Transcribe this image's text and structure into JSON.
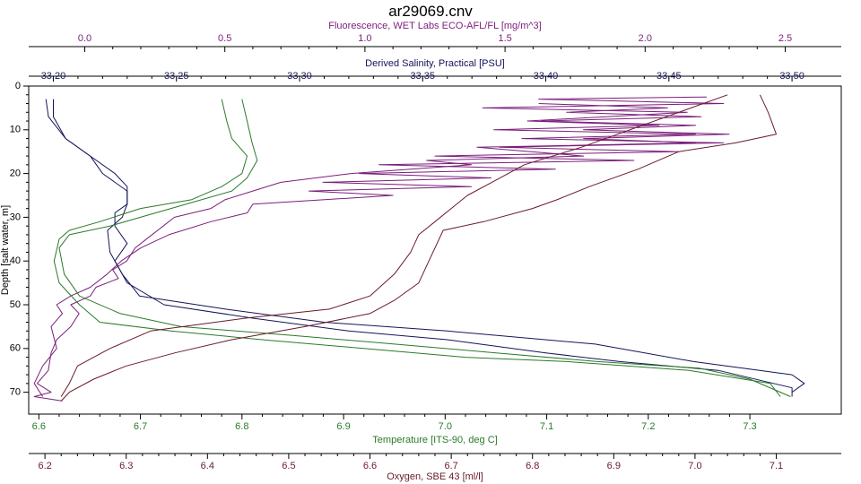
{
  "chart_data": {
    "type": "line",
    "title": "ar29069.cnv",
    "colors": {
      "fluorescence": "#7b1f7b",
      "salinity": "#14145a",
      "temperature": "#2a7a2a",
      "oxygen": "#6a1a2a",
      "depth_axis": "#000000"
    },
    "grid": false,
    "axes": {
      "fluorescence": {
        "label": "Fluorescence, WET Labs ECO-AFL/FL [mg/m^3]",
        "position": "top-outer",
        "range": [
          -0.2,
          2.7
        ],
        "ticks": [
          "0.0",
          "0.5",
          "1.0",
          "1.5",
          "2.0",
          "2.5"
        ]
      },
      "salinity": {
        "label": "Derived Salinity, Practical [PSU]",
        "position": "top-inner",
        "range": [
          33.19,
          33.52
        ],
        "ticks": [
          "33.20",
          "33.25",
          "33.30",
          "33.35",
          "33.40",
          "33.45",
          "33.50"
        ]
      },
      "temperature": {
        "label": "Temperature [ITS-90, deg C]",
        "position": "bottom-inner",
        "range": [
          6.59,
          7.39
        ],
        "ticks": [
          "6.6",
          "6.7",
          "6.8",
          "6.9",
          "7.0",
          "7.1",
          "7.2",
          "7.3"
        ]
      },
      "oxygen": {
        "label": "Oxygen, SBE 43 [ml/l]",
        "position": "bottom-outer",
        "range": [
          6.18,
          7.18
        ],
        "ticks": [
          "6.2",
          "6.3",
          "6.4",
          "6.5",
          "6.6",
          "6.7",
          "6.8",
          "6.9",
          "7.0",
          "7.1"
        ]
      },
      "depth": {
        "label": "Depth [salt water, m]",
        "position": "left",
        "range": [
          0,
          75
        ],
        "ticks": [
          "0",
          "10",
          "20",
          "30",
          "40",
          "50",
          "60",
          "70"
        ],
        "inverted": true
      }
    },
    "series": [
      {
        "name": "Fluorescence, WET Labs ECO-AFL/FL [mg/m^3]",
        "axis": "fluorescence",
        "color_key": "fluorescence",
        "points": [
          [
            2.22,
            2.5
          ],
          [
            1.62,
            3
          ],
          [
            2.28,
            4
          ],
          [
            1.42,
            5
          ],
          [
            2.15,
            6
          ],
          [
            1.58,
            8
          ],
          [
            2.05,
            9
          ],
          [
            1.46,
            10
          ],
          [
            2.18,
            11
          ],
          [
            1.56,
            12
          ],
          [
            2.28,
            13
          ],
          [
            1.48,
            14
          ],
          [
            2.12,
            15
          ],
          [
            1.25,
            16
          ],
          [
            1.96,
            17
          ],
          [
            1.05,
            18
          ],
          [
            1.68,
            19
          ],
          [
            0.98,
            20
          ],
          [
            1.45,
            21
          ],
          [
            0.85,
            22
          ],
          [
            1.38,
            23
          ],
          [
            0.8,
            24
          ],
          [
            1.1,
            25
          ],
          [
            0.6,
            27
          ],
          [
            0.58,
            29
          ],
          [
            0.45,
            31
          ],
          [
            0.3,
            34
          ],
          [
            0.2,
            37
          ],
          [
            0.13,
            40
          ],
          [
            0.08,
            43
          ],
          [
            0.02,
            46
          ],
          [
            -0.05,
            48
          ],
          [
            -0.1,
            50
          ],
          [
            -0.08,
            52
          ],
          [
            -0.12,
            55
          ],
          [
            -0.1,
            60
          ],
          [
            -0.15,
            64
          ],
          [
            -0.18,
            68
          ],
          [
            -0.15,
            71
          ]
        ]
      },
      {
        "name": "Fluorescence, WET Labs ECO-AFL/FL [mg/m^3]",
        "axis": "fluorescence",
        "color_key": "fluorescence",
        "points": [
          [
            1.62,
            4
          ],
          [
            2.08,
            5
          ],
          [
            1.72,
            6
          ],
          [
            2.2,
            7
          ],
          [
            1.63,
            8
          ],
          [
            2.18,
            9
          ],
          [
            1.78,
            10
          ],
          [
            2.3,
            11
          ],
          [
            1.78,
            12
          ],
          [
            2.18,
            13
          ],
          [
            1.4,
            14
          ],
          [
            1.78,
            16
          ],
          [
            1.22,
            17
          ],
          [
            1.38,
            18
          ],
          [
            0.95,
            20
          ],
          [
            0.7,
            22
          ],
          [
            0.6,
            24
          ],
          [
            0.5,
            26
          ],
          [
            0.45,
            28
          ],
          [
            0.32,
            30
          ],
          [
            0.28,
            32
          ],
          [
            0.22,
            35
          ],
          [
            0.18,
            37
          ],
          [
            0.15,
            40
          ],
          [
            0.1,
            42
          ],
          [
            0.12,
            44
          ],
          [
            0.04,
            46
          ],
          [
            0.02,
            48
          ],
          [
            -0.05,
            50
          ],
          [
            -0.02,
            52
          ],
          [
            -0.05,
            55
          ],
          [
            -0.1,
            58
          ],
          [
            -0.12,
            61
          ],
          [
            -0.13,
            65
          ],
          [
            -0.17,
            68
          ],
          [
            -0.12,
            70
          ],
          [
            -0.18,
            71
          ],
          [
            -0.08,
            72
          ]
        ]
      },
      {
        "name": "Derived Salinity, Practical [PSU]",
        "axis": "salinity",
        "color_key": "salinity",
        "points": [
          [
            33.2,
            3
          ],
          [
            33.2,
            7
          ],
          [
            33.205,
            12
          ],
          [
            33.215,
            16
          ],
          [
            33.22,
            20
          ],
          [
            33.23,
            24
          ],
          [
            33.23,
            27
          ],
          [
            33.225,
            29
          ],
          [
            33.225,
            32
          ],
          [
            33.23,
            36
          ],
          [
            33.225,
            40
          ],
          [
            33.23,
            45
          ],
          [
            33.245,
            50
          ],
          [
            33.28,
            53
          ],
          [
            33.32,
            56
          ],
          [
            33.36,
            58
          ],
          [
            33.4,
            61
          ],
          [
            33.43,
            63
          ],
          [
            33.47,
            65
          ],
          [
            33.5,
            69
          ],
          [
            33.5,
            71
          ]
        ]
      },
      {
        "name": "Derived Salinity, Practical [PSU]",
        "axis": "salinity",
        "color_key": "salinity",
        "points": [
          [
            33.197,
            3
          ],
          [
            33.198,
            7
          ],
          [
            33.205,
            12
          ],
          [
            33.215,
            16
          ],
          [
            33.225,
            20
          ],
          [
            33.23,
            23
          ],
          [
            33.23,
            27
          ],
          [
            33.228,
            30
          ],
          [
            33.222,
            33
          ],
          [
            33.223,
            38
          ],
          [
            33.228,
            43
          ],
          [
            33.235,
            48
          ],
          [
            33.27,
            51
          ],
          [
            33.31,
            54
          ],
          [
            33.36,
            56
          ],
          [
            33.42,
            59
          ],
          [
            33.46,
            63
          ],
          [
            33.5,
            66
          ],
          [
            33.505,
            68
          ],
          [
            33.5,
            70
          ]
        ]
      },
      {
        "name": "Temperature [ITS-90, deg C]",
        "axis": "temperature",
        "color_key": "temperature",
        "points": [
          [
            6.8,
            3
          ],
          [
            6.805,
            8
          ],
          [
            6.81,
            13
          ],
          [
            6.815,
            17
          ],
          [
            6.805,
            21
          ],
          [
            6.79,
            24
          ],
          [
            6.73,
            28
          ],
          [
            6.7,
            30
          ],
          [
            6.67,
            32
          ],
          [
            6.63,
            34
          ],
          [
            6.62,
            37
          ],
          [
            6.625,
            43
          ],
          [
            6.64,
            48
          ],
          [
            6.68,
            52
          ],
          [
            6.74,
            55
          ],
          [
            6.85,
            57
          ],
          [
            6.95,
            59
          ],
          [
            7.05,
            61
          ],
          [
            7.15,
            63
          ],
          [
            7.25,
            64.5
          ],
          [
            7.3,
            67
          ],
          [
            7.34,
            71
          ]
        ]
      },
      {
        "name": "Temperature [ITS-90, deg C]",
        "axis": "temperature",
        "color_key": "temperature",
        "points": [
          [
            6.78,
            3
          ],
          [
            6.785,
            8
          ],
          [
            6.79,
            12
          ],
          [
            6.805,
            16
          ],
          [
            6.8,
            20
          ],
          [
            6.78,
            23
          ],
          [
            6.75,
            26
          ],
          [
            6.7,
            28
          ],
          [
            6.66,
            31
          ],
          [
            6.63,
            33
          ],
          [
            6.62,
            35
          ],
          [
            6.615,
            40
          ],
          [
            6.62,
            45
          ],
          [
            6.64,
            50
          ],
          [
            6.66,
            54
          ],
          [
            6.73,
            56
          ],
          [
            6.82,
            58
          ],
          [
            6.92,
            60
          ],
          [
            7.02,
            62
          ],
          [
            7.12,
            63
          ],
          [
            7.24,
            65
          ],
          [
            7.32,
            68
          ],
          [
            7.33,
            71
          ]
        ]
      },
      {
        "name": "Oxygen, SBE 43 [ml/l]",
        "axis": "oxygen",
        "color_key": "oxygen",
        "points": [
          [
            7.04,
            2
          ],
          [
            6.98,
            6
          ],
          [
            6.92,
            10
          ],
          [
            6.86,
            14
          ],
          [
            6.79,
            18
          ],
          [
            6.75,
            22
          ],
          [
            6.72,
            25
          ],
          [
            6.7,
            28
          ],
          [
            6.68,
            31
          ],
          [
            6.66,
            34
          ],
          [
            6.65,
            38
          ],
          [
            6.63,
            43
          ],
          [
            6.6,
            48
          ],
          [
            6.55,
            51
          ],
          [
            6.45,
            53
          ],
          [
            6.33,
            56
          ],
          [
            6.28,
            60
          ],
          [
            6.24,
            64
          ],
          [
            6.23,
            68
          ],
          [
            6.22,
            71
          ]
        ]
      },
      {
        "name": "Oxygen, SBE 43 [ml/l]",
        "axis": "oxygen",
        "color_key": "oxygen",
        "points": [
          [
            7.08,
            2
          ],
          [
            7.09,
            6
          ],
          [
            7.1,
            11
          ],
          [
            7.05,
            13
          ],
          [
            6.98,
            15
          ],
          [
            6.93,
            19
          ],
          [
            6.87,
            23
          ],
          [
            6.83,
            26
          ],
          [
            6.8,
            28
          ],
          [
            6.74,
            31
          ],
          [
            6.69,
            33
          ],
          [
            6.68,
            37
          ],
          [
            6.67,
            41
          ],
          [
            6.66,
            45
          ],
          [
            6.63,
            49
          ],
          [
            6.6,
            52
          ],
          [
            6.52,
            55
          ],
          [
            6.43,
            58
          ],
          [
            6.36,
            61
          ],
          [
            6.3,
            64
          ],
          [
            6.26,
            67
          ],
          [
            6.23,
            70
          ],
          [
            6.22,
            72
          ]
        ]
      }
    ]
  }
}
